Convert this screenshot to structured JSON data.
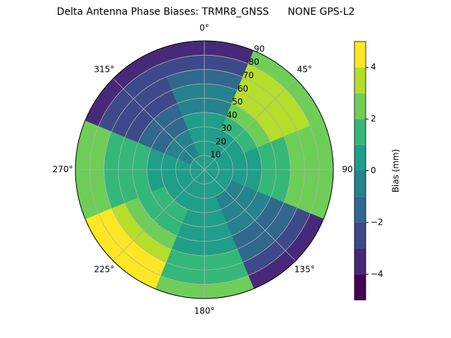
{
  "chart_data": {
    "type": "polar_contour",
    "title": "Delta Antenna Phase Biases: TRMR8_GNSS      NONE GPS-L2",
    "azimuths": [
      0,
      45,
      90,
      135,
      180,
      225,
      270,
      315
    ],
    "radii": [
      5,
      15,
      25,
      35,
      45,
      55,
      65,
      75,
      85
    ],
    "z": [
      [
        0,
        0,
        0,
        0,
        -1,
        -1,
        -2,
        -3,
        -4
      ],
      [
        0,
        0,
        0.5,
        1,
        2,
        3,
        3.5,
        3,
        2
      ],
      [
        0,
        0,
        0,
        0.5,
        1,
        1.5,
        2,
        2.5,
        2.5
      ],
      [
        0,
        0,
        -0.5,
        -1,
        -1,
        -1.5,
        -2,
        -3,
        -4
      ],
      [
        0,
        0,
        0,
        0.5,
        0.5,
        0.5,
        1,
        1.5,
        2.5
      ],
      [
        0,
        0,
        0.5,
        1,
        1.5,
        2,
        3,
        4,
        4.5
      ],
      [
        0,
        0,
        0,
        0.5,
        1,
        1,
        1.5,
        2,
        2.5
      ],
      [
        0,
        -0.5,
        -1,
        -1.5,
        -2,
        -2.5,
        -3,
        -3,
        -3.5
      ]
    ],
    "rlim": [
      0,
      90
    ],
    "rticks": [
      10,
      20,
      30,
      40,
      50,
      60,
      70,
      80,
      90
    ],
    "thetaticks": [
      {
        "value": 0,
        "label": "0°"
      },
      {
        "value": 45,
        "label": "45°"
      },
      {
        "value": 90,
        "label": "90"
      },
      {
        "value": 135,
        "label": "135°"
      },
      {
        "value": 180,
        "label": "180°"
      },
      {
        "value": 225,
        "label": "225°"
      },
      {
        "value": 270,
        "label": "270°"
      },
      {
        "value": 315,
        "label": "315°"
      }
    ],
    "levels": [
      -5,
      -4,
      -3,
      -2,
      -1,
      0,
      1,
      2,
      3,
      4,
      5
    ],
    "colors": [
      "#440154",
      "#482878",
      "#3e4989",
      "#31688e",
      "#26828e",
      "#1f9e89",
      "#35b779",
      "#6ece58",
      "#b5de2b",
      "#fde725"
    ],
    "colorbar_label": "Bias (mm)",
    "cticks": [
      {
        "value": -4,
        "label": "−4"
      },
      {
        "value": -2,
        "label": "−2"
      },
      0,
      2,
      4
    ],
    "grid": true
  }
}
